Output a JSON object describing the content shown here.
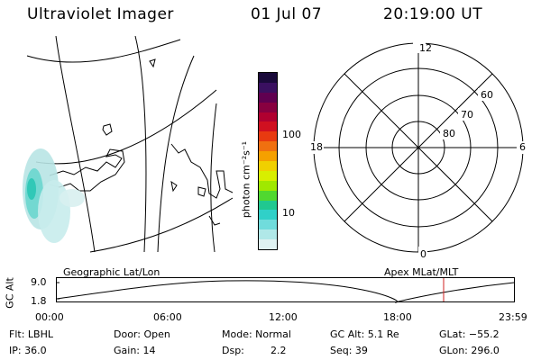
{
  "header": {
    "title": "Ultraviolet Imager",
    "date": "01 Jul 07",
    "time": "20:19:00 UT"
  },
  "colorbar": {
    "label": "photon cm⁻²s⁻¹",
    "ticks": [
      "100",
      "10"
    ],
    "colors": [
      "#1a0a3a",
      "#3a1060",
      "#600050",
      "#880040",
      "#b00030",
      "#d01020",
      "#e83a10",
      "#f07010",
      "#f5a000",
      "#f0d000",
      "#d8ee00",
      "#a0e800",
      "#50d830",
      "#20c890",
      "#30d0c8",
      "#70dcdc",
      "#b0e8e8",
      "#e0f2f2"
    ]
  },
  "polar_plot": {
    "mlt_labels": {
      "top": "12",
      "left": "18",
      "right": "6",
      "bottom": "0"
    },
    "lat_labels": [
      "60",
      "70",
      "80"
    ]
  },
  "timeline": {
    "left_label": "Geographic Lat/Lon",
    "right_label": "Apex MLat/MLT",
    "axis_title": "GC Alt",
    "y_max": "9.0",
    "y_min": "1.8",
    "times": [
      "00:00",
      "06:00",
      "12:00",
      "18:00",
      "23:59"
    ],
    "marker_color": "#d02020"
  },
  "info": {
    "row1": {
      "filter": "Flt: LBHL",
      "door": "Door: Open",
      "mode": "Mode: Normal",
      "gc_alt": "GC Alt: 5.1 Re",
      "glat": "GLat: −55.2"
    },
    "row2": {
      "ip": "IP: 36.0",
      "gain": "Gain: 14",
      "dsp_label": "Dsp:",
      "dsp_value": "2.2",
      "seq": "Seq: 39",
      "glon": "GLon: 296.0"
    }
  }
}
